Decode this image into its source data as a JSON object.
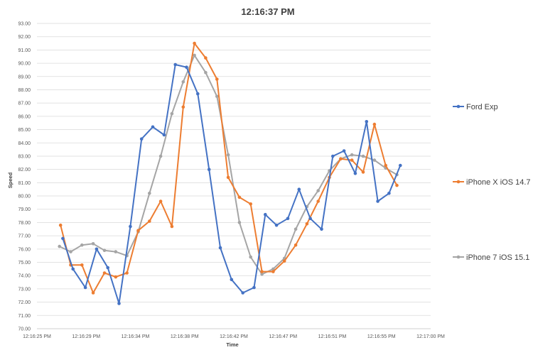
{
  "chart_data": {
    "type": "line",
    "title": "12:16:37 PM",
    "xlabel": "Time",
    "ylabel": "Speed",
    "ylim": [
      70,
      93
    ],
    "y_tick_step": 1,
    "y_tick_labels": [
      "70.00",
      "71.00",
      "72.00",
      "73.00",
      "74.00",
      "75.00",
      "76.00",
      "77.00",
      "78.00",
      "79.00",
      "80.00",
      "81.00",
      "82.00",
      "83.00",
      "84.00",
      "85.00",
      "86.00",
      "87.00",
      "88.00",
      "89.00",
      "90.00",
      "91.00",
      "92.00",
      "93.00"
    ],
    "x_unit": "seconds past 12:16:00 PM",
    "xlim": [
      25,
      60
    ],
    "x_ticks": [
      25,
      29.375,
      33.75,
      38.125,
      42.5,
      46.875,
      51.25,
      55.625,
      60
    ],
    "x_tick_labels": [
      "12:16:25 PM",
      "12:16:29 PM",
      "12:16:34 PM",
      "12:16:38 PM",
      "12:16:42 PM",
      "12:16:47 PM",
      "12:16:51 PM",
      "12:16:55 PM",
      "12:17:00 PM"
    ],
    "grid": true,
    "legend_position": "right",
    "series": [
      {
        "name": "Ford Exp",
        "color": "#4472C4",
        "points": [
          [
            27.3,
            76.8
          ],
          [
            28.2,
            74.5
          ],
          [
            29.3,
            73.1
          ],
          [
            30.3,
            76.0
          ],
          [
            31.3,
            74.6
          ],
          [
            32.3,
            71.9
          ],
          [
            33.3,
            77.7
          ],
          [
            34.3,
            84.3
          ],
          [
            35.3,
            85.2
          ],
          [
            36.3,
            84.6
          ],
          [
            37.3,
            89.9
          ],
          [
            38.3,
            89.7
          ],
          [
            39.3,
            87.7
          ],
          [
            40.3,
            82.0
          ],
          [
            41.3,
            76.1
          ],
          [
            42.3,
            73.7
          ],
          [
            43.3,
            72.7
          ],
          [
            44.3,
            73.1
          ],
          [
            45.3,
            78.6
          ],
          [
            46.3,
            77.8
          ],
          [
            47.3,
            78.3
          ],
          [
            48.3,
            80.5
          ],
          [
            49.3,
            78.3
          ],
          [
            50.3,
            77.5
          ],
          [
            51.3,
            83.0
          ],
          [
            52.3,
            83.4
          ],
          [
            53.3,
            81.7
          ],
          [
            54.3,
            85.6
          ],
          [
            55.3,
            79.6
          ],
          [
            56.3,
            80.2
          ],
          [
            57.3,
            82.3
          ]
        ]
      },
      {
        "name": "iPhone X iOS 14.7",
        "color": "#ED7D31",
        "points": [
          [
            27.1,
            77.8
          ],
          [
            28.0,
            74.8
          ],
          [
            29.0,
            74.8
          ],
          [
            30.0,
            72.7
          ],
          [
            31.0,
            74.2
          ],
          [
            32.0,
            73.9
          ],
          [
            33.0,
            74.2
          ],
          [
            34.0,
            77.4
          ],
          [
            35.0,
            78.1
          ],
          [
            36.0,
            79.6
          ],
          [
            37.0,
            77.7
          ],
          [
            38.0,
            86.7
          ],
          [
            39.0,
            91.5
          ],
          [
            40.0,
            90.4
          ],
          [
            41.0,
            88.8
          ],
          [
            42.0,
            81.4
          ],
          [
            43.0,
            79.9
          ],
          [
            44.0,
            79.4
          ],
          [
            45.0,
            74.3
          ],
          [
            46.0,
            74.3
          ],
          [
            47.0,
            75.1
          ],
          [
            48.0,
            76.3
          ],
          [
            49.0,
            77.9
          ],
          [
            50.0,
            79.6
          ],
          [
            51.0,
            81.4
          ],
          [
            52.0,
            82.8
          ],
          [
            53.0,
            82.7
          ],
          [
            54.0,
            81.8
          ],
          [
            55.0,
            85.4
          ],
          [
            56.0,
            82.3
          ],
          [
            57.0,
            80.8
          ]
        ]
      },
      {
        "name": "iPhone 7 iOS 15.1",
        "color": "#A5A5A5",
        "points": [
          [
            27.0,
            76.2
          ],
          [
            28.0,
            75.8
          ],
          [
            29.0,
            76.3
          ],
          [
            30.0,
            76.4
          ],
          [
            31.0,
            75.9
          ],
          [
            32.0,
            75.8
          ],
          [
            33.0,
            75.5
          ],
          [
            34.0,
            77.3
          ],
          [
            35.0,
            80.2
          ],
          [
            36.0,
            83.0
          ],
          [
            37.0,
            86.2
          ],
          [
            38.0,
            88.6
          ],
          [
            39.0,
            90.6
          ],
          [
            40.0,
            89.3
          ],
          [
            41.0,
            87.5
          ],
          [
            42.0,
            83.1
          ],
          [
            43.0,
            78.0
          ],
          [
            44.0,
            75.4
          ],
          [
            45.0,
            74.1
          ],
          [
            46.0,
            74.5
          ],
          [
            47.0,
            75.3
          ],
          [
            48.0,
            77.5
          ],
          [
            49.0,
            79.2
          ],
          [
            50.0,
            80.4
          ],
          [
            51.0,
            81.9
          ],
          [
            52.0,
            82.8
          ],
          [
            53.0,
            83.1
          ],
          [
            54.0,
            83.0
          ],
          [
            55.0,
            82.7
          ],
          [
            56.0,
            82.1
          ],
          [
            57.0,
            81.6
          ]
        ]
      }
    ]
  }
}
